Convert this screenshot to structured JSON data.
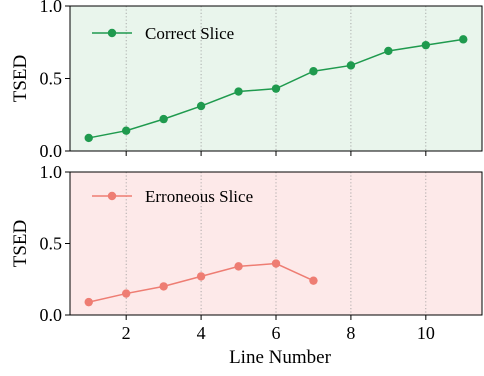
{
  "chart_data": [
    {
      "type": "line",
      "ylabel": "TSED",
      "xlabel": "",
      "ylim": [
        0.0,
        1.0
      ],
      "xlim": [
        0.5,
        11.5
      ],
      "yticks": [
        0.0,
        0.5,
        1.0
      ],
      "ytick_labels": [
        "0.0",
        "0.5",
        "1.0"
      ],
      "xticks": [
        2,
        4,
        6,
        8,
        10
      ],
      "grid": "vertical dotted",
      "legend_position": "top-left",
      "background_color": "#e9f5ec",
      "series": [
        {
          "name": "Correct Slice",
          "color": "#1f9a4e",
          "x": [
            1,
            2,
            3,
            4,
            5,
            6,
            7,
            8,
            9,
            10,
            11
          ],
          "y": [
            0.09,
            0.14,
            0.22,
            0.31,
            0.41,
            0.43,
            0.55,
            0.59,
            0.69,
            0.73,
            0.77
          ]
        }
      ]
    },
    {
      "type": "line",
      "ylabel": "TSED",
      "xlabel": "Line Number",
      "ylim": [
        0.0,
        1.0
      ],
      "xlim": [
        0.5,
        11.5
      ],
      "yticks": [
        0.0,
        0.5,
        1.0
      ],
      "ytick_labels": [
        "0.0",
        "0.5",
        "1.0"
      ],
      "xticks": [
        2,
        4,
        6,
        8,
        10
      ],
      "xtick_labels": [
        "2",
        "4",
        "6",
        "8",
        "10"
      ],
      "grid": "vertical dotted",
      "legend_position": "top-left",
      "background_color": "#fde9e9",
      "series": [
        {
          "name": "Erroneous Slice",
          "color": "#ee7d73",
          "x": [
            1,
            2,
            3,
            4,
            5,
            6,
            7
          ],
          "y": [
            0.09,
            0.15,
            0.2,
            0.27,
            0.34,
            0.36,
            0.24
          ]
        }
      ]
    }
  ]
}
